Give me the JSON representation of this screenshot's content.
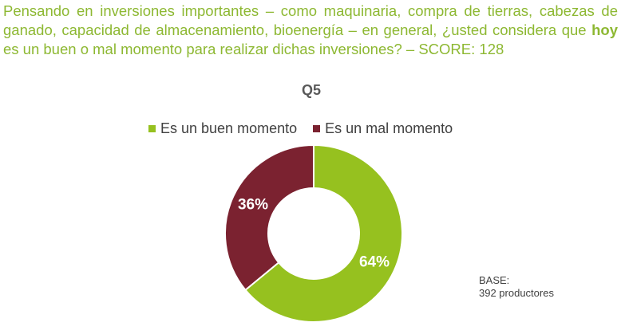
{
  "question": {
    "before": "Pensando en inversiones importantes – como maquinaria, compra de tierras, cabezas de ganado, capacidad de almacenamiento, bioenergía – en general, ¿usted considera que ",
    "highlight": "hoy",
    "after": " es un buen o mal momento para realizar dichas inversiones? – SCORE: 128"
  },
  "base": {
    "label": "BASE:",
    "value": "392 productores"
  },
  "chart_data": {
    "type": "pie",
    "donut": true,
    "title": "Q5",
    "legend_position": "top",
    "categories": [
      "Es un buen momento",
      "Es un mal momento"
    ],
    "values": [
      64,
      36
    ],
    "data_labels": [
      "64%",
      "36%"
    ],
    "colors": [
      "#96c11f",
      "#7b2230"
    ],
    "label_color": "#ffffff"
  }
}
